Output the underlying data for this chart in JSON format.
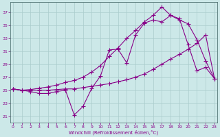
{
  "xlabel": "Windchill (Refroidissement éolien,°C)",
  "bg_color": "#cce8e8",
  "grid_color": "#aacccc",
  "line_color": "#880088",
  "x_ticks": [
    0,
    1,
    2,
    3,
    4,
    5,
    6,
    7,
    8,
    9,
    10,
    11,
    12,
    13,
    14,
    15,
    16,
    17,
    18,
    19,
    20,
    21,
    22,
    23
  ],
  "y_ticks": [
    21,
    23,
    25,
    27,
    29,
    31,
    33,
    35,
    37
  ],
  "ylim": [
    20.0,
    38.5
  ],
  "xlim": [
    -0.3,
    23.3
  ],
  "line1": [
    25.2,
    25.0,
    24.8,
    24.5,
    24.5,
    24.8,
    25.0,
    21.2,
    22.5,
    25.3,
    27.2,
    31.2,
    31.3,
    29.2,
    33.5,
    35.3,
    35.8,
    35.5,
    36.5,
    36.0,
    32.0,
    28.0,
    28.5,
    26.8
  ],
  "line2": [
    25.2,
    25.0,
    25.0,
    25.0,
    25.0,
    25.1,
    25.2,
    25.2,
    25.4,
    25.6,
    25.8,
    26.0,
    26.3,
    26.6,
    27.0,
    27.5,
    28.2,
    29.0,
    29.8,
    30.5,
    31.3,
    32.2,
    33.5,
    26.8
  ],
  "line3": [
    25.2,
    25.0,
    25.1,
    25.3,
    25.5,
    25.8,
    26.2,
    26.5,
    27.0,
    27.8,
    28.8,
    30.2,
    31.5,
    33.0,
    34.2,
    35.5,
    36.5,
    37.8,
    36.5,
    35.8,
    35.2,
    32.8,
    29.5,
    26.8
  ]
}
